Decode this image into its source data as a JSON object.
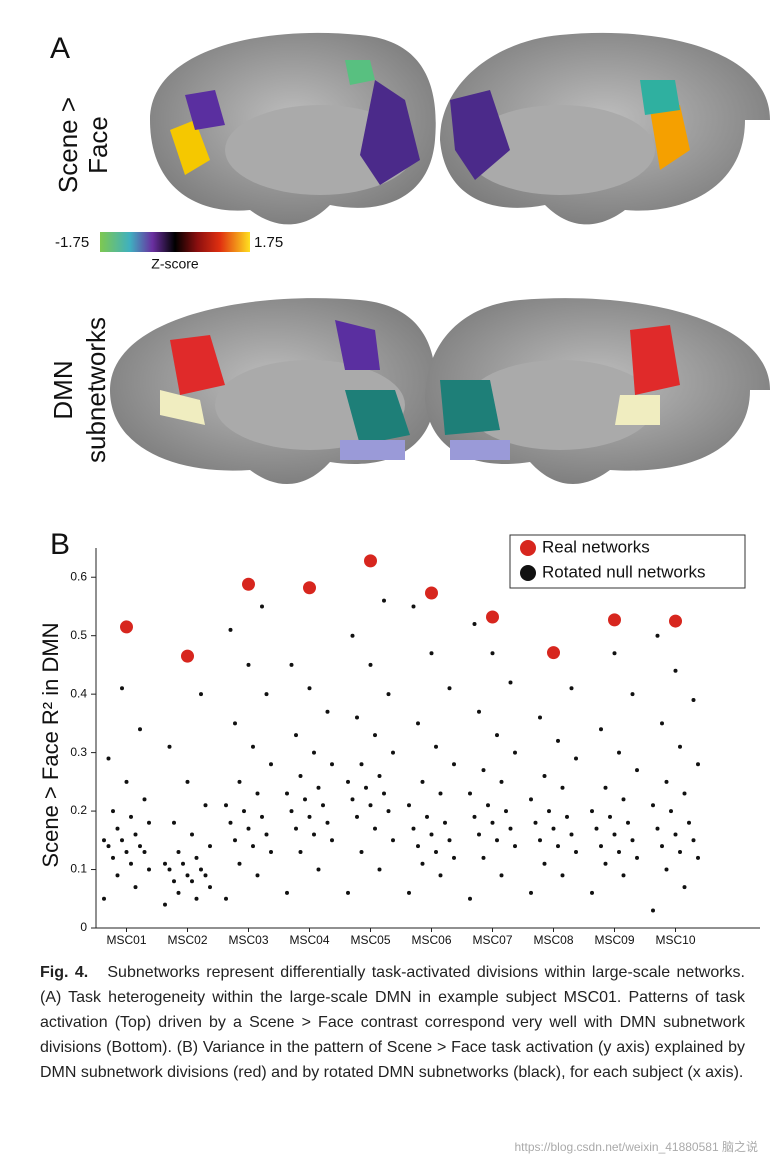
{
  "panel_a": {
    "label": "A",
    "row_labels": [
      "Scene >",
      "Face",
      "DMN",
      "subnetworks"
    ],
    "colorbar": {
      "min_label": "-1.75",
      "max_label": "1.75",
      "title": "Z-score"
    }
  },
  "chart_data": {
    "type": "scatter",
    "panel_label": "B",
    "y_label": "Scene > Face R² in DMN",
    "categories": [
      "MSC01",
      "MSC02",
      "MSC03",
      "MSC04",
      "MSC05",
      "MSC06",
      "MSC07",
      "MSC08",
      "MSC09",
      "MSC10"
    ],
    "series": [
      {
        "name": "Real networks",
        "color": "#d7261e",
        "values": [
          0.515,
          0.465,
          0.588,
          0.582,
          0.628,
          0.573,
          0.532,
          0.471,
          0.527,
          0.525
        ]
      },
      {
        "name": "Rotated null networks",
        "color": "#111111",
        "values": [
          [
            0.05,
            0.07,
            0.09,
            0.1,
            0.11,
            0.12,
            0.13,
            0.13,
            0.14,
            0.14,
            0.15,
            0.15,
            0.16,
            0.17,
            0.18,
            0.19,
            0.2,
            0.22,
            0.25,
            0.29,
            0.34,
            0.41
          ],
          [
            0.04,
            0.05,
            0.06,
            0.07,
            0.08,
            0.08,
            0.09,
            0.09,
            0.1,
            0.1,
            0.11,
            0.11,
            0.12,
            0.13,
            0.14,
            0.16,
            0.18,
            0.21,
            0.25,
            0.31,
            0.4
          ],
          [
            0.05,
            0.09,
            0.11,
            0.13,
            0.14,
            0.15,
            0.16,
            0.17,
            0.18,
            0.19,
            0.2,
            0.21,
            0.23,
            0.25,
            0.28,
            0.31,
            0.35,
            0.4,
            0.45,
            0.51,
            0.55
          ],
          [
            0.06,
            0.1,
            0.13,
            0.15,
            0.16,
            0.17,
            0.18,
            0.19,
            0.2,
            0.21,
            0.22,
            0.23,
            0.24,
            0.26,
            0.28,
            0.3,
            0.33,
            0.37,
            0.41,
            0.45
          ],
          [
            0.06,
            0.1,
            0.13,
            0.15,
            0.17,
            0.19,
            0.2,
            0.21,
            0.22,
            0.23,
            0.24,
            0.25,
            0.26,
            0.28,
            0.3,
            0.33,
            0.36,
            0.4,
            0.45,
            0.5,
            0.56
          ],
          [
            0.06,
            0.09,
            0.11,
            0.12,
            0.13,
            0.14,
            0.15,
            0.16,
            0.17,
            0.18,
            0.19,
            0.21,
            0.23,
            0.25,
            0.28,
            0.31,
            0.35,
            0.41,
            0.47,
            0.55
          ],
          [
            0.05,
            0.09,
            0.12,
            0.14,
            0.15,
            0.16,
            0.17,
            0.18,
            0.19,
            0.2,
            0.21,
            0.23,
            0.25,
            0.27,
            0.3,
            0.33,
            0.37,
            0.42,
            0.47,
            0.52
          ],
          [
            0.06,
            0.09,
            0.11,
            0.13,
            0.14,
            0.15,
            0.16,
            0.17,
            0.18,
            0.19,
            0.2,
            0.22,
            0.24,
            0.26,
            0.29,
            0.32,
            0.36,
            0.41
          ],
          [
            0.06,
            0.09,
            0.11,
            0.12,
            0.13,
            0.14,
            0.15,
            0.16,
            0.17,
            0.18,
            0.19,
            0.2,
            0.22,
            0.24,
            0.27,
            0.3,
            0.34,
            0.4,
            0.47
          ],
          [
            0.03,
            0.07,
            0.1,
            0.12,
            0.13,
            0.14,
            0.15,
            0.16,
            0.17,
            0.18,
            0.2,
            0.21,
            0.23,
            0.25,
            0.28,
            0.31,
            0.35,
            0.39,
            0.44,
            0.5
          ]
        ]
      }
    ],
    "ylim": [
      0,
      0.65
    ],
    "yticks": [
      0,
      0.1,
      0.2,
      0.3,
      0.4,
      0.5,
      0.6
    ],
    "legend": "upper right"
  },
  "caption": {
    "label": "Fig. 4.",
    "text": "Subnetworks represent differentially task-activated divisions within large-scale networks. (A) Task heterogeneity within the large-scale DMN in example subject MSC01. Patterns of task activation (Top) driven by a Scene > Face contrast correspond very well with DMN subnetwork divisions (Bottom). (B) Variance in the pattern of Scene > Face task activation (y axis) explained by DMN subnetwork divisions (red) and by rotated DMN subnetworks (black), for each subject (x axis)."
  },
  "watermark": {
    "url": "https://blog.csdn.net/weixin_41880581",
    "brand": "脑之说"
  }
}
